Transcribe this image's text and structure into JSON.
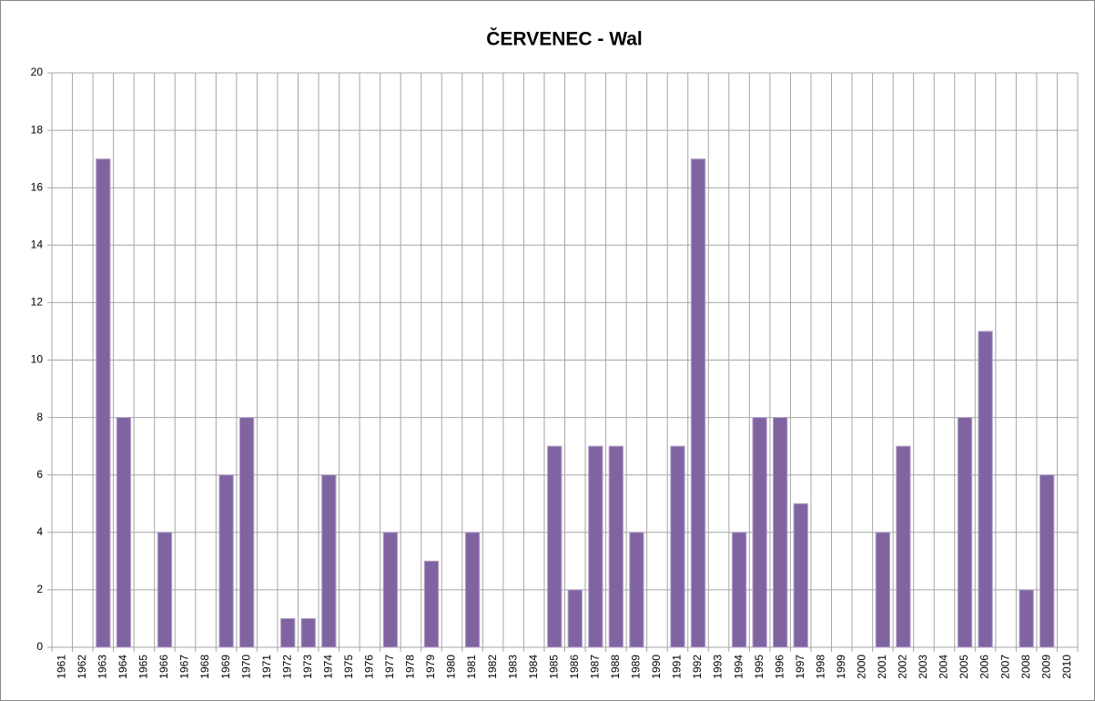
{
  "chart_data": {
    "type": "bar",
    "title": "ČERVENEC - Wal",
    "categories": [
      "1961",
      "1962",
      "1963",
      "1964",
      "1965",
      "1966",
      "1967",
      "1968",
      "1969",
      "1970",
      "1971",
      "1972",
      "1973",
      "1974",
      "1975",
      "1976",
      "1977",
      "1978",
      "1979",
      "1980",
      "1981",
      "1982",
      "1983",
      "1984",
      "1985",
      "1986",
      "1987",
      "1988",
      "1989",
      "1990",
      "1991",
      "1992",
      "1993",
      "1994",
      "1995",
      "1996",
      "1997",
      "1998",
      "1999",
      "2000",
      "2001",
      "2002",
      "2003",
      "2004",
      "2005",
      "2006",
      "2007",
      "2008",
      "2009",
      "2010"
    ],
    "values": [
      0,
      0,
      17,
      8,
      0,
      4,
      0,
      0,
      6,
      8,
      0,
      1,
      1,
      6,
      0,
      0,
      4,
      0,
      3,
      0,
      4,
      0,
      0,
      0,
      7,
      2,
      7,
      7,
      4,
      0,
      7,
      17,
      0,
      4,
      8,
      8,
      5,
      0,
      0,
      0,
      4,
      7,
      0,
      0,
      8,
      11,
      0,
      2,
      6,
      0
    ],
    "color": "#8064a2",
    "ylim": [
      0,
      20
    ],
    "yticks": [
      0,
      2,
      4,
      6,
      8,
      10,
      12,
      14,
      16,
      18,
      20
    ],
    "grid": true
  }
}
